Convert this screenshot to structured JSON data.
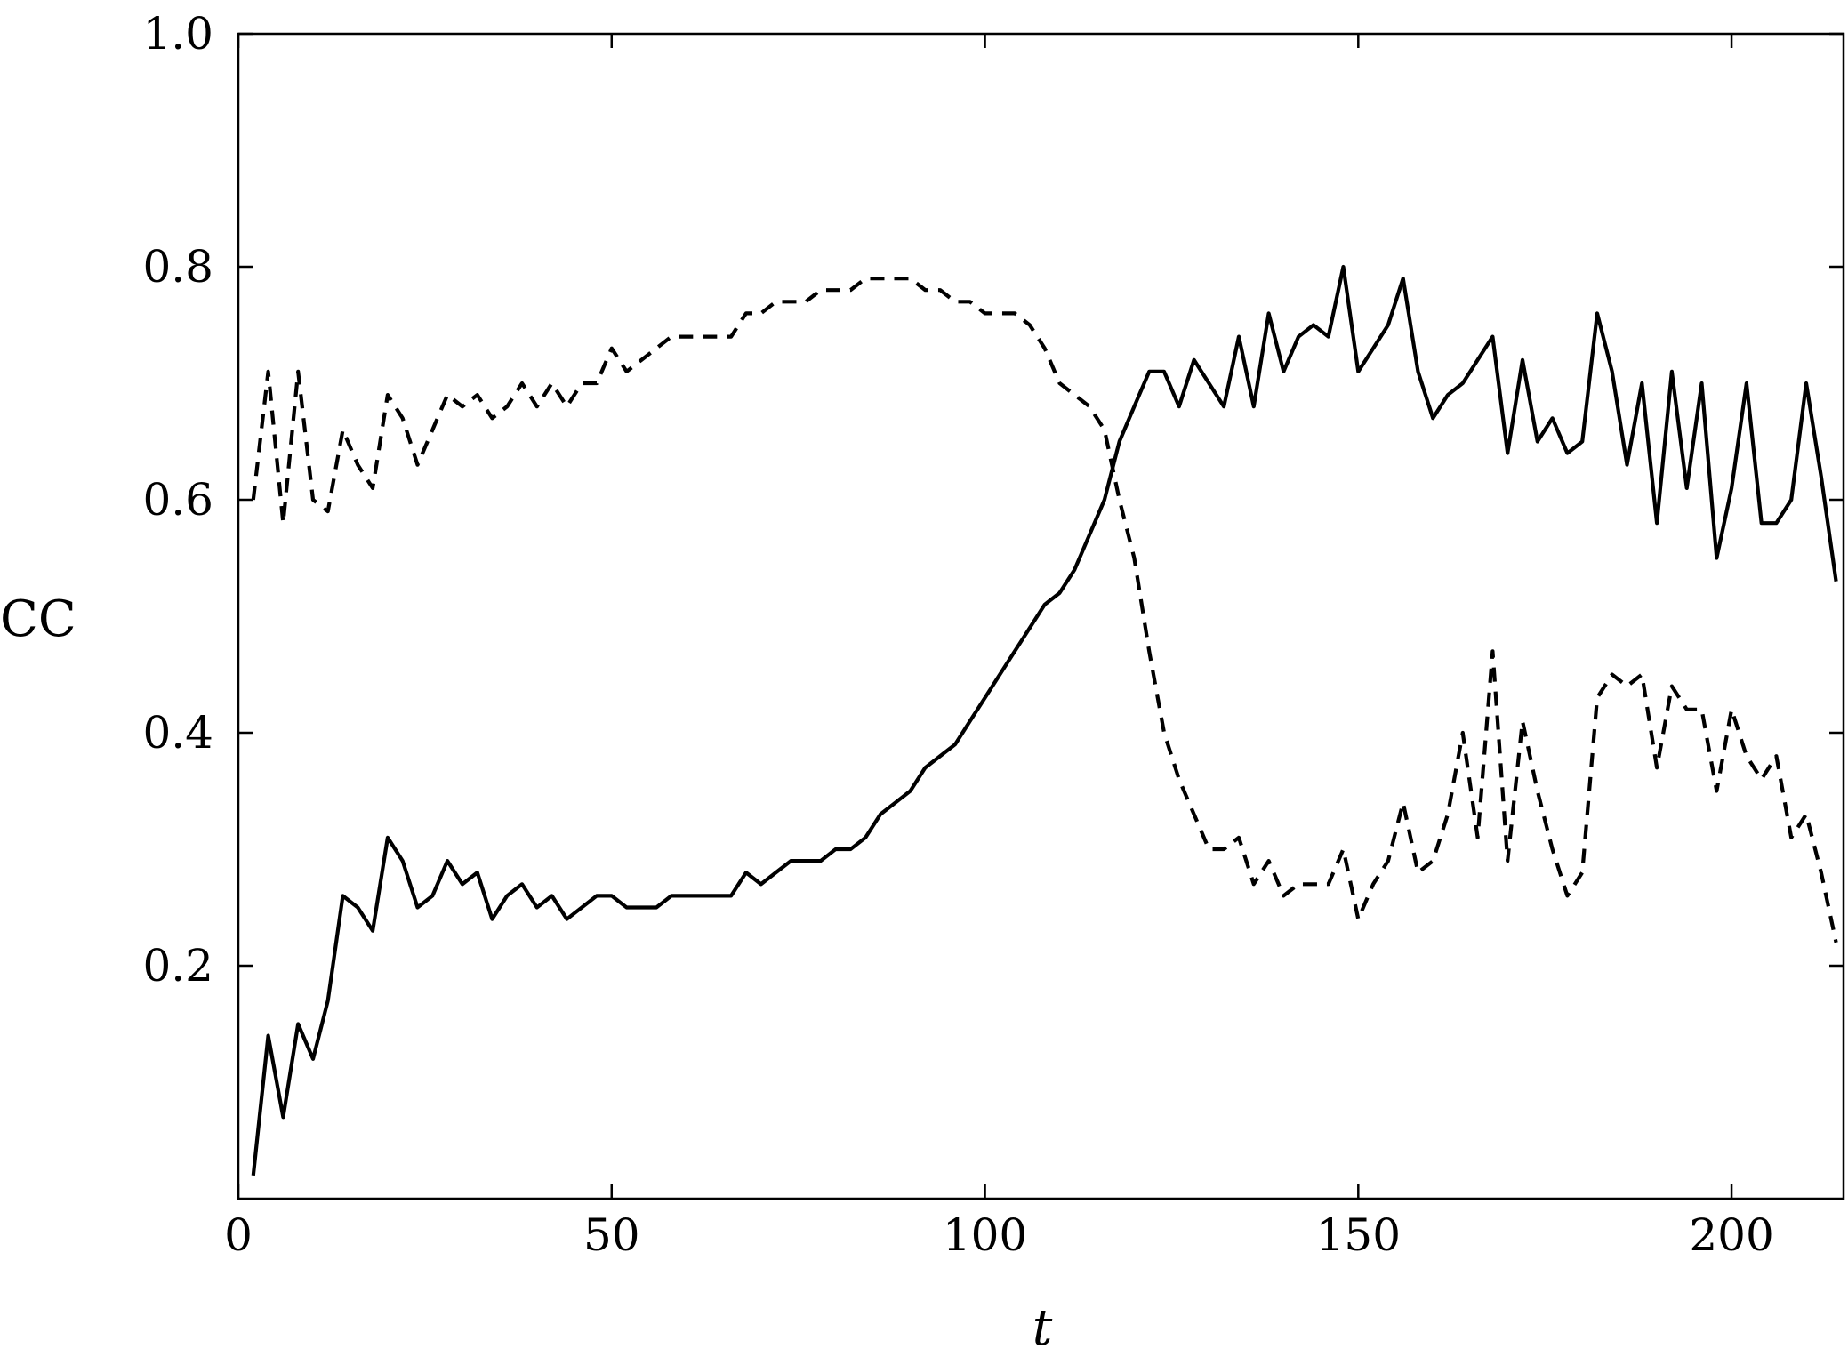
{
  "chart_data": {
    "type": "line",
    "title": "",
    "xlabel": "t",
    "ylabel": "CC",
    "xlim": [
      0,
      215
    ],
    "ylim": [
      0,
      1.0
    ],
    "x_ticks": [
      "0",
      "50",
      "100",
      "150",
      "200"
    ],
    "y_ticks": [
      "0.2",
      "0.4",
      "0.6",
      "0.8",
      "1.0"
    ],
    "x_tick_values": [
      0,
      50,
      100,
      150,
      200
    ],
    "y_tick_values": [
      0.2,
      0.4,
      0.6,
      0.8,
      1.0
    ],
    "grid": false,
    "legend": false,
    "series": [
      {
        "style": "solid",
        "x": [
          2,
          4,
          6,
          8,
          10,
          12,
          14,
          16,
          18,
          20,
          22,
          24,
          26,
          28,
          30,
          32,
          34,
          36,
          38,
          40,
          42,
          44,
          46,
          48,
          50,
          52,
          54,
          56,
          58,
          60,
          62,
          64,
          66,
          68,
          70,
          72,
          74,
          76,
          78,
          80,
          82,
          84,
          86,
          88,
          90,
          92,
          94,
          96,
          98,
          100,
          102,
          104,
          106,
          108,
          110,
          112,
          114,
          116,
          118,
          120,
          122,
          124,
          126,
          128,
          130,
          132,
          134,
          136,
          138,
          140,
          142,
          144,
          146,
          148,
          150,
          152,
          154,
          156,
          158,
          160,
          162,
          164,
          166,
          168,
          170,
          172,
          174,
          176,
          178,
          180,
          182,
          184,
          186,
          188,
          190,
          192,
          194,
          196,
          198,
          200,
          202,
          204,
          206,
          208,
          210,
          212,
          214
        ],
        "y": [
          0.02,
          0.14,
          0.07,
          0.15,
          0.12,
          0.17,
          0.26,
          0.25,
          0.23,
          0.31,
          0.29,
          0.25,
          0.26,
          0.29,
          0.27,
          0.28,
          0.24,
          0.26,
          0.27,
          0.25,
          0.26,
          0.24,
          0.25,
          0.26,
          0.26,
          0.25,
          0.25,
          0.25,
          0.26,
          0.26,
          0.26,
          0.26,
          0.26,
          0.28,
          0.27,
          0.28,
          0.29,
          0.29,
          0.29,
          0.3,
          0.3,
          0.31,
          0.33,
          0.34,
          0.35,
          0.37,
          0.38,
          0.39,
          0.41,
          0.43,
          0.45,
          0.47,
          0.49,
          0.51,
          0.52,
          0.54,
          0.57,
          0.6,
          0.65,
          0.68,
          0.71,
          0.71,
          0.68,
          0.72,
          0.7,
          0.68,
          0.74,
          0.68,
          0.76,
          0.71,
          0.74,
          0.75,
          0.74,
          0.8,
          0.71,
          0.73,
          0.75,
          0.79,
          0.71,
          0.67,
          0.69,
          0.7,
          0.72,
          0.74,
          0.64,
          0.72,
          0.65,
          0.67,
          0.64,
          0.65,
          0.76,
          0.71,
          0.63,
          0.7,
          0.58,
          0.71,
          0.61,
          0.7,
          0.55,
          0.61,
          0.7,
          0.58,
          0.58,
          0.6,
          0.7,
          0.62,
          0.53
        ]
      },
      {
        "style": "dashed",
        "x": [
          2,
          4,
          6,
          8,
          10,
          12,
          14,
          16,
          18,
          20,
          22,
          24,
          26,
          28,
          30,
          32,
          34,
          36,
          38,
          40,
          42,
          44,
          46,
          48,
          50,
          52,
          54,
          56,
          58,
          60,
          62,
          64,
          66,
          68,
          70,
          72,
          74,
          76,
          78,
          80,
          82,
          84,
          86,
          88,
          90,
          92,
          94,
          96,
          98,
          100,
          102,
          104,
          106,
          108,
          110,
          112,
          114,
          116,
          118,
          120,
          122,
          124,
          126,
          128,
          130,
          132,
          134,
          136,
          138,
          140,
          142,
          144,
          146,
          148,
          150,
          152,
          154,
          156,
          158,
          160,
          162,
          164,
          166,
          168,
          170,
          172,
          174,
          176,
          178,
          180,
          182,
          184,
          186,
          188,
          190,
          192,
          194,
          196,
          198,
          200,
          202,
          204,
          206,
          208,
          210,
          212,
          214
        ],
        "y": [
          0.6,
          0.71,
          0.58,
          0.71,
          0.6,
          0.59,
          0.66,
          0.63,
          0.61,
          0.69,
          0.67,
          0.63,
          0.66,
          0.69,
          0.68,
          0.69,
          0.67,
          0.68,
          0.7,
          0.68,
          0.7,
          0.68,
          0.7,
          0.7,
          0.73,
          0.71,
          0.72,
          0.73,
          0.74,
          0.74,
          0.74,
          0.74,
          0.74,
          0.76,
          0.76,
          0.77,
          0.77,
          0.77,
          0.78,
          0.78,
          0.78,
          0.79,
          0.79,
          0.79,
          0.79,
          0.78,
          0.78,
          0.77,
          0.77,
          0.76,
          0.76,
          0.76,
          0.75,
          0.73,
          0.7,
          0.69,
          0.68,
          0.66,
          0.6,
          0.55,
          0.47,
          0.4,
          0.36,
          0.33,
          0.3,
          0.3,
          0.31,
          0.27,
          0.29,
          0.26,
          0.27,
          0.27,
          0.27,
          0.3,
          0.24,
          0.27,
          0.29,
          0.34,
          0.28,
          0.29,
          0.33,
          0.4,
          0.31,
          0.47,
          0.29,
          0.41,
          0.35,
          0.3,
          0.26,
          0.28,
          0.43,
          0.45,
          0.44,
          0.45,
          0.37,
          0.44,
          0.42,
          0.42,
          0.35,
          0.42,
          0.38,
          0.36,
          0.38,
          0.31,
          0.33,
          0.28,
          0.22
        ]
      }
    ]
  }
}
